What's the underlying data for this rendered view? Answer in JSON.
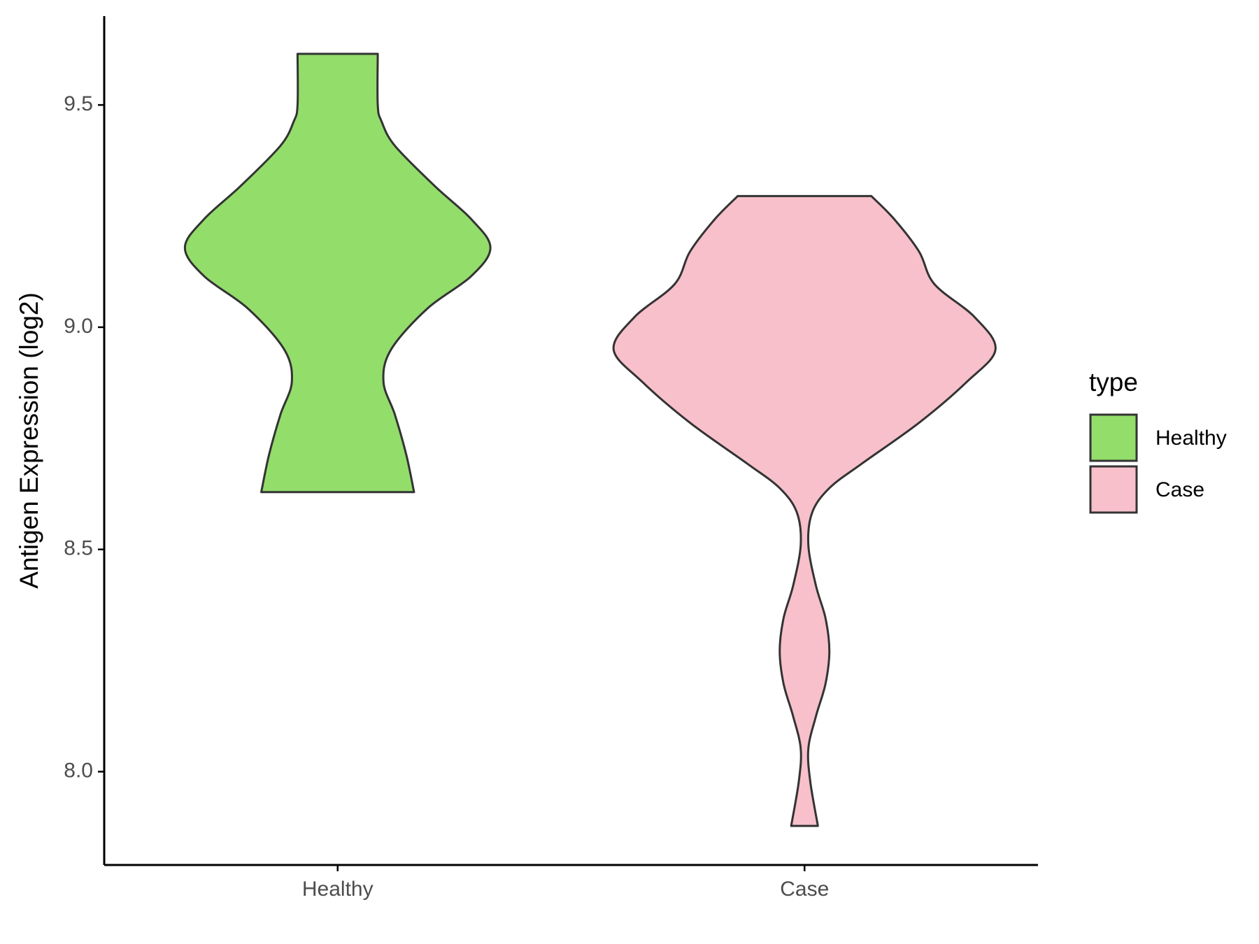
{
  "chart_data": {
    "type": "violin",
    "y_label": "Antigen Expression (log2)",
    "categories": [
      "Healthy",
      "Case"
    ],
    "series": [
      {
        "name": "Healthy",
        "color": "#93dd6b",
        "y": [
          9.615,
          9.5,
          9.463,
          9.408,
          9.317,
          9.243,
          9.179,
          9.115,
          9.042,
          8.95,
          8.877,
          8.803,
          8.712,
          8.629
        ],
        "width": [
          0.21,
          0.21,
          0.23,
          0.3,
          0.51,
          0.7,
          0.8,
          0.7,
          0.47,
          0.28,
          0.24,
          0.3,
          0.36,
          0.4
        ]
      },
      {
        "name": "Case",
        "color": "#f7c0cb",
        "y": [
          9.295,
          9.243,
          9.17,
          9.097,
          9.023,
          8.95,
          8.877,
          8.785,
          8.693,
          8.638,
          8.583,
          8.51,
          8.418,
          8.345,
          8.272,
          8.198,
          8.125,
          8.052,
          7.978,
          7.878
        ],
        "width": [
          0.35,
          0.47,
          0.6,
          0.68,
          0.89,
          1.0,
          0.85,
          0.6,
          0.3,
          0.13,
          0.04,
          0.02,
          0.06,
          0.11,
          0.13,
          0.11,
          0.06,
          0.02,
          0.03,
          0.07
        ]
      }
    ],
    "ylim": [
      7.79,
      9.7
    ],
    "yticks": [
      {
        "value": 8,
        "label": "8.0"
      },
      8.5,
      {
        "value": 9,
        "label": "9.0"
      },
      9.5
    ],
    "legend_title": "type",
    "legend_position": "right"
  }
}
